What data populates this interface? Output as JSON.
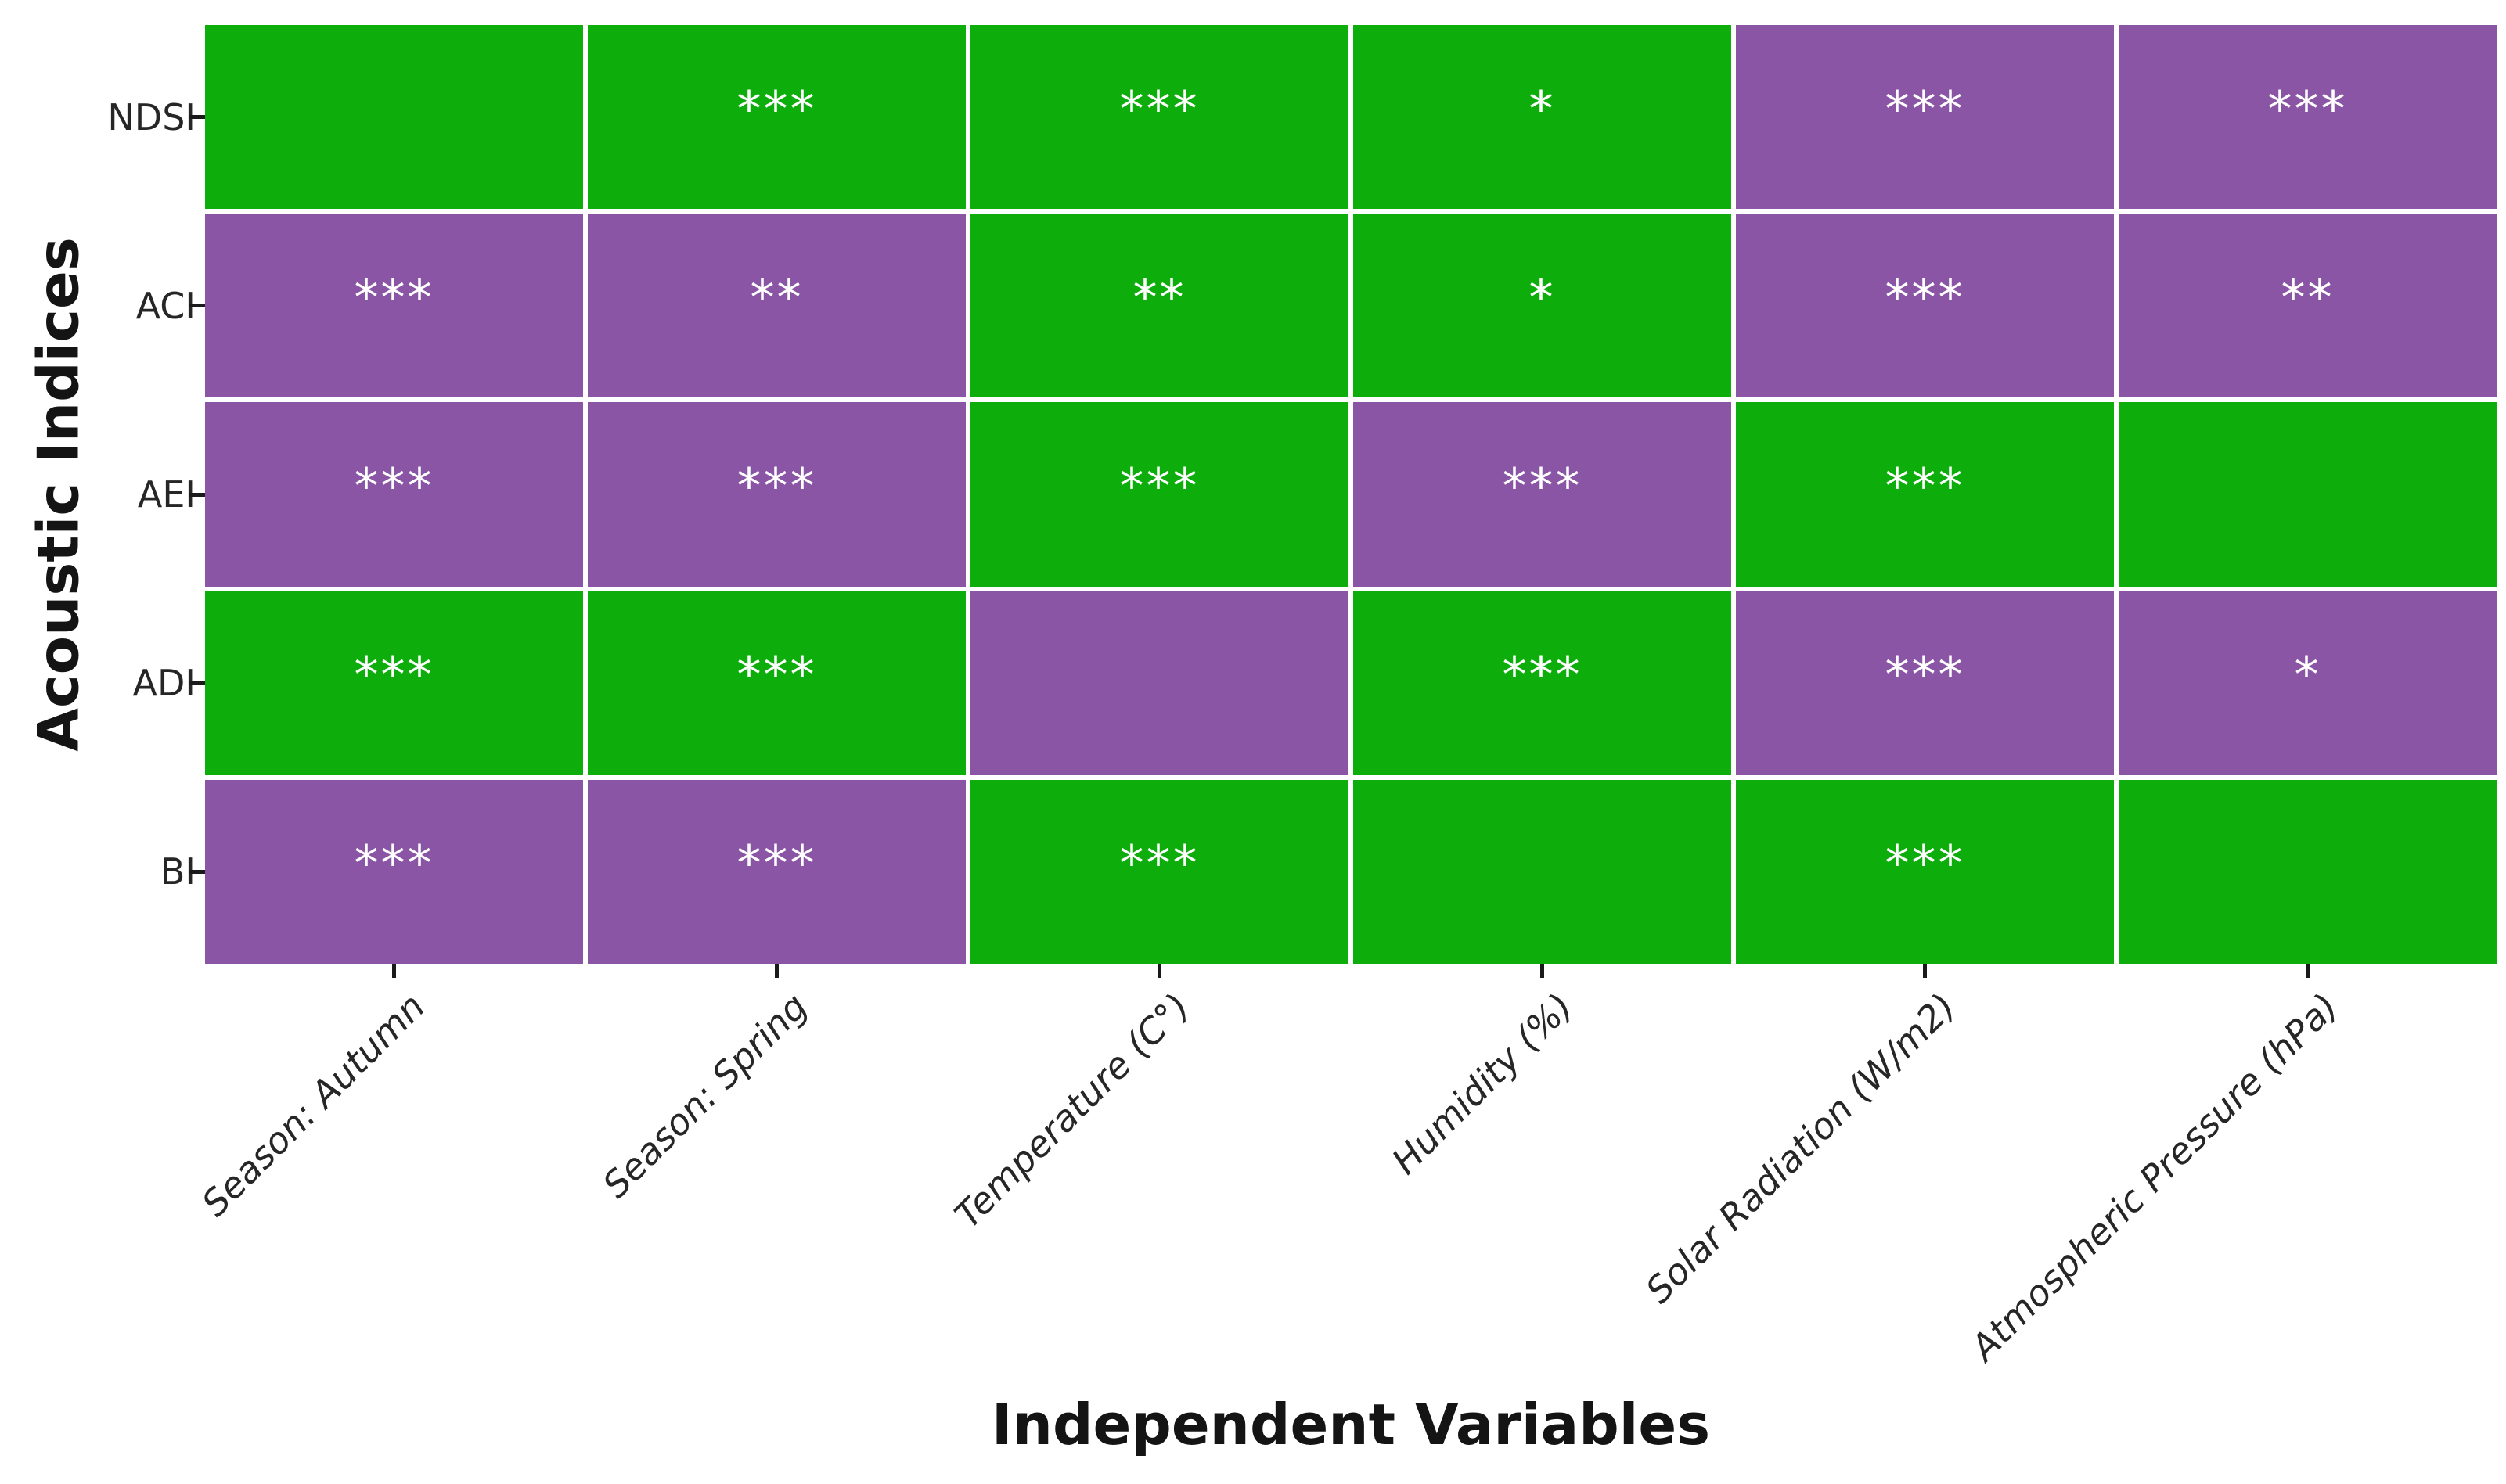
{
  "chart_data": {
    "type": "heatmap",
    "xlabel": "Independent Variables",
    "ylabel": "Acoustic Indices",
    "rows": [
      "NDSI",
      "ACI",
      "AEI",
      "ADI",
      "BI"
    ],
    "columns": [
      "Season: Autumn",
      "Season: Spring",
      "Temperature (C°)",
      "Humidity (%)",
      "Solar Radiation (W/m2)",
      "Atmospheric Pressure (hPa)"
    ],
    "palette": {
      "green": "#0dad0b",
      "purple": "#8a55a4"
    },
    "cells": [
      [
        {
          "color": "green",
          "sig": ""
        },
        {
          "color": "green",
          "sig": "***"
        },
        {
          "color": "green",
          "sig": "***"
        },
        {
          "color": "green",
          "sig": "*"
        },
        {
          "color": "purple",
          "sig": "***"
        },
        {
          "color": "purple",
          "sig": "***"
        }
      ],
      [
        {
          "color": "purple",
          "sig": "***"
        },
        {
          "color": "purple",
          "sig": "**"
        },
        {
          "color": "green",
          "sig": "**"
        },
        {
          "color": "green",
          "sig": "*"
        },
        {
          "color": "purple",
          "sig": "***"
        },
        {
          "color": "purple",
          "sig": "**"
        }
      ],
      [
        {
          "color": "purple",
          "sig": "***"
        },
        {
          "color": "purple",
          "sig": "***"
        },
        {
          "color": "green",
          "sig": "***"
        },
        {
          "color": "purple",
          "sig": "***"
        },
        {
          "color": "green",
          "sig": "***"
        },
        {
          "color": "green",
          "sig": ""
        }
      ],
      [
        {
          "color": "green",
          "sig": "***"
        },
        {
          "color": "green",
          "sig": "***"
        },
        {
          "color": "purple",
          "sig": ""
        },
        {
          "color": "green",
          "sig": "***"
        },
        {
          "color": "purple",
          "sig": "***"
        },
        {
          "color": "purple",
          "sig": "*"
        }
      ],
      [
        {
          "color": "purple",
          "sig": "***"
        },
        {
          "color": "purple",
          "sig": "***"
        },
        {
          "color": "green",
          "sig": "***"
        },
        {
          "color": "green",
          "sig": ""
        },
        {
          "color": "green",
          "sig": "***"
        },
        {
          "color": "green",
          "sig": ""
        }
      ]
    ],
    "grid": "white gaps between cells",
    "legend_position": "none"
  }
}
